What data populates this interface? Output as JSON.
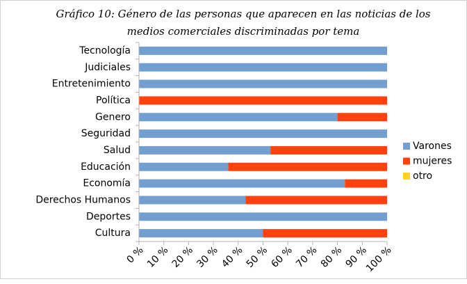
{
  "chart_data": {
    "type": "stacked-barh",
    "title": [
      "Gráfico 10: Género de las personas que aparecen en las noticias de los",
      "medios comerciales discriminadas por tema"
    ],
    "categories": [
      "Tecnología",
      "Judiciales",
      "Entretenimiento",
      "Política",
      "Genero",
      "Seguridad",
      "Salud",
      "Educación",
      "Economía",
      "Derechos Humanos",
      "Deportes",
      "Cultura"
    ],
    "series": [
      {
        "name": "Varones",
        "color": "#729fcf",
        "values": [
          100,
          100,
          100,
          0,
          80,
          100,
          53,
          36,
          83,
          43,
          100,
          50
        ]
      },
      {
        "name": "mujeres",
        "color": "#ff420e",
        "values": [
          0,
          0,
          0,
          100,
          20,
          0,
          47,
          64,
          17,
          57,
          0,
          50
        ]
      },
      {
        "name": "otro",
        "color": "#ffd320",
        "values": [
          0,
          0,
          0,
          0,
          0,
          0,
          0,
          0,
          0,
          0,
          0,
          0
        ]
      }
    ],
    "xlim": [
      0,
      100
    ],
    "xticks": [
      {
        "value": 0,
        "label": "0 %"
      },
      {
        "value": 10,
        "label": "10 %"
      },
      {
        "value": 20,
        "label": "20 %"
      },
      {
        "value": 30,
        "label": "30 %"
      },
      {
        "value": 40,
        "label": "40 %"
      },
      {
        "value": 50,
        "label": "50 %"
      },
      {
        "value": 60,
        "label": "60 %"
      },
      {
        "value": 70,
        "label": "70 %"
      },
      {
        "value": 80,
        "label": "80 %"
      },
      {
        "value": 90,
        "label": "90 %"
      },
      {
        "value": 100,
        "label": "100 %"
      }
    ],
    "legend": "right"
  }
}
